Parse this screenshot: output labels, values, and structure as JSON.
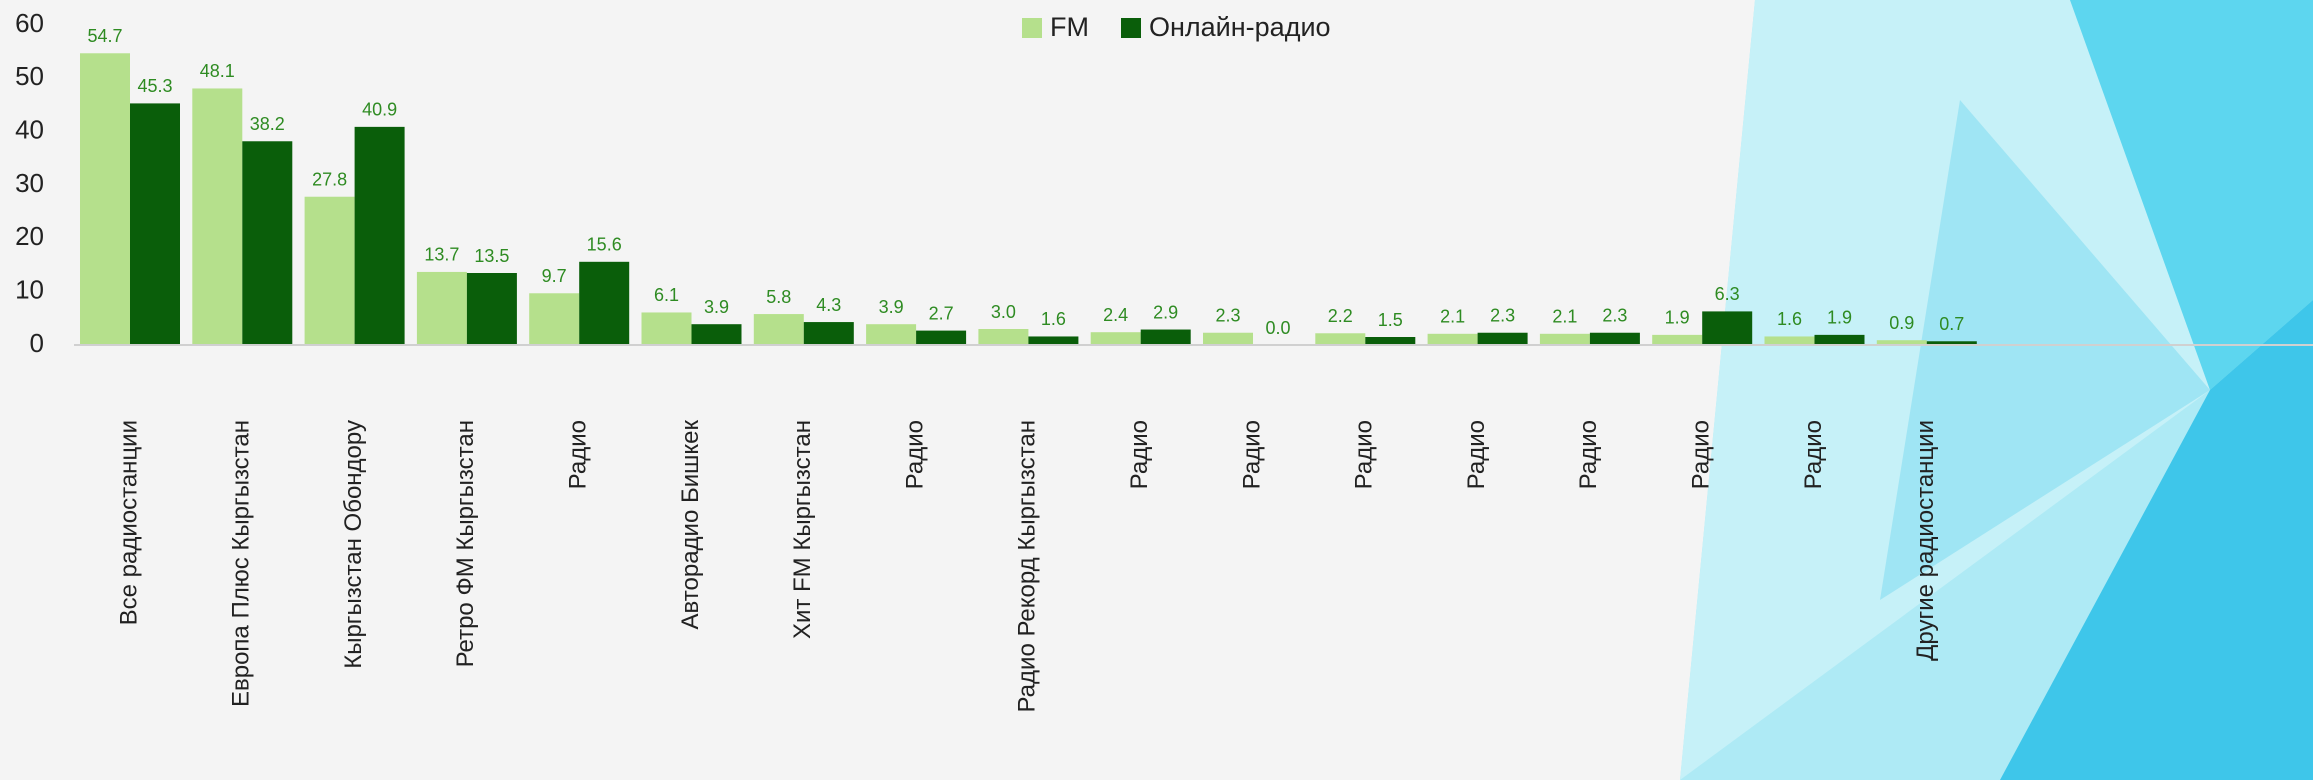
{
  "chart_data": {
    "type": "bar",
    "categories": [
      "Все радиостанции",
      "Европа Плюс Кыргызстан",
      "Кыргызстан Обондору",
      "Ретро ФМ Кыргызстан",
      "Радио",
      "Авторадио Бишкек",
      "Хит FM Кыргызстан",
      "Радио",
      "Радио Рекорд Кыргызстан",
      "Радио",
      "Радио",
      "Радио",
      "Радио",
      "Радио",
      "Радио",
      "Радио",
      "Другие радиостанции"
    ],
    "series": [
      {
        "name": "FM",
        "color": "#b5e08c",
        "values": [
          54.7,
          48.1,
          27.8,
          13.7,
          9.7,
          6.1,
          5.8,
          3.9,
          3.0,
          2.4,
          2.3,
          2.2,
          2.1,
          2.1,
          1.9,
          1.6,
          0.9
        ],
        "value_labels": [
          "54.7",
          "48.1",
          "27.8",
          "13.7",
          "9.7",
          "6.1",
          "5.8",
          "3.9",
          "3.0",
          "2.4",
          "2.3",
          "2.2",
          "2.1",
          "2.1",
          "1.9",
          "1.6",
          "0.9"
        ]
      },
      {
        "name": "Онлайн-радио",
        "color": "#0a5e0a",
        "values": [
          45.3,
          38.2,
          40.9,
          13.5,
          15.6,
          3.9,
          4.3,
          2.7,
          1.6,
          2.9,
          0.0,
          1.5,
          2.3,
          2.3,
          6.3,
          1.9,
          0.7
        ],
        "value_labels": [
          "45.3",
          "38.2",
          "40.9",
          "13.5",
          "15.6",
          "3.9",
          "4.3",
          "2.7",
          "1.6",
          "2.9",
          "0.0",
          "1.5",
          "2.3",
          "2.3",
          "6.3",
          "1.9",
          "0.7"
        ]
      }
    ],
    "ylim": [
      0,
      60
    ],
    "yticks": [
      0,
      10,
      20,
      30,
      40,
      50,
      60
    ],
    "grid": false,
    "legend": "top"
  }
}
